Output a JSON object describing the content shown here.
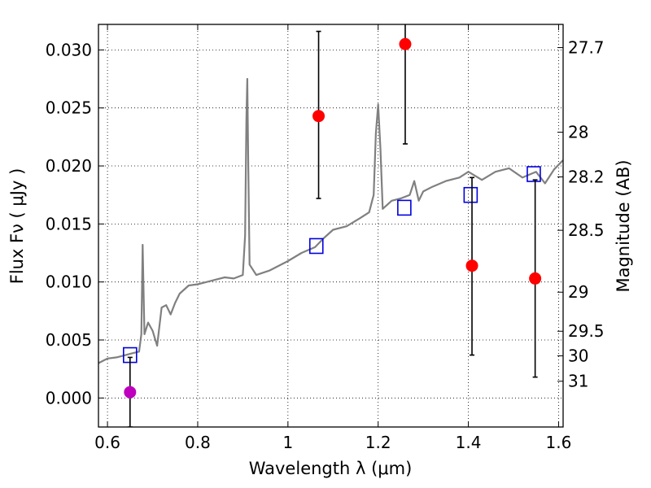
{
  "chart_data": {
    "type": "scatter",
    "xlabel": "Wavelength  λ (μm)",
    "ylabel_left": "Flux  Fν ( μJy )",
    "ylabel_right": "Magnitude (AB)",
    "xlim": [
      0.58,
      1.61
    ],
    "ylim": [
      -0.0025,
      0.0322
    ],
    "grid": true,
    "x_ticks": [
      {
        "value": 0.6,
        "label": "0.6"
      },
      {
        "value": 0.8,
        "label": "0.8"
      },
      {
        "value": 1.0,
        "label": "1"
      },
      {
        "value": 1.2,
        "label": "1.2"
      },
      {
        "value": 1.4,
        "label": "1.4"
      },
      {
        "value": 1.6,
        "label": "1.6"
      }
    ],
    "y_ticks": [
      {
        "value": 0.0,
        "label": "0.000"
      },
      {
        "value": 0.005,
        "label": "0.005"
      },
      {
        "value": 0.01,
        "label": "0.010"
      },
      {
        "value": 0.015,
        "label": "0.015"
      },
      {
        "value": 0.02,
        "label": "0.020"
      },
      {
        "value": 0.025,
        "label": "0.025"
      },
      {
        "value": 0.03,
        "label": "0.030"
      }
    ],
    "y_right_ticks": [
      {
        "value": 27.7,
        "label": "27.7"
      },
      {
        "value": 28.0,
        "label": "28"
      },
      {
        "value": 28.2,
        "label": "28.2"
      },
      {
        "value": 28.5,
        "label": "28.5"
      },
      {
        "value": 29.0,
        "label": "29"
      },
      {
        "value": 29.5,
        "label": "29.5"
      },
      {
        "value": 30.0,
        "label": "30"
      },
      {
        "value": 31.0,
        "label": "31"
      }
    ],
    "series": [
      {
        "kind": "line",
        "color": "#808080",
        "x": [
          0.58,
          0.6,
          0.62,
          0.64,
          0.65,
          0.66,
          0.67,
          0.675,
          0.678,
          0.682,
          0.69,
          0.7,
          0.71,
          0.72,
          0.73,
          0.74,
          0.75,
          0.76,
          0.78,
          0.8,
          0.82,
          0.84,
          0.86,
          0.88,
          0.9,
          0.905,
          0.908,
          0.91,
          0.912,
          0.915,
          0.93,
          0.96,
          1.0,
          1.03,
          1.06,
          1.08,
          1.1,
          1.13,
          1.16,
          1.18,
          1.19,
          1.195,
          1.2,
          1.205,
          1.21,
          1.23,
          1.25,
          1.27,
          1.28,
          1.29,
          1.3,
          1.32,
          1.35,
          1.38,
          1.4,
          1.43,
          1.46,
          1.49,
          1.52,
          1.55,
          1.57,
          1.59,
          1.61
        ],
        "y": [
          0.003,
          0.0034,
          0.0035,
          0.0037,
          0.0038,
          0.0039,
          0.004,
          0.0055,
          0.0132,
          0.0055,
          0.0065,
          0.0058,
          0.0045,
          0.0078,
          0.008,
          0.0072,
          0.0082,
          0.009,
          0.0097,
          0.0098,
          0.01,
          0.0102,
          0.0104,
          0.0103,
          0.0106,
          0.014,
          0.024,
          0.0275,
          0.02,
          0.0115,
          0.0106,
          0.011,
          0.0118,
          0.0125,
          0.013,
          0.0138,
          0.0145,
          0.0148,
          0.0155,
          0.016,
          0.0175,
          0.0228,
          0.0253,
          0.0215,
          0.0163,
          0.017,
          0.0172,
          0.0175,
          0.0187,
          0.017,
          0.0178,
          0.0182,
          0.0187,
          0.019,
          0.0195,
          0.0188,
          0.0195,
          0.0198,
          0.019,
          0.0195,
          0.0185,
          0.0197,
          0.0205
        ]
      },
      {
        "kind": "points",
        "marker": "open-square",
        "color": "#0000dd",
        "x": [
          0.65,
          1.063,
          1.258,
          1.405,
          1.545
        ],
        "y": [
          0.0037,
          0.0131,
          0.0164,
          0.0175,
          0.0193
        ]
      },
      {
        "kind": "points-with-errors",
        "marker": "filled-circle",
        "color": "#ff0000",
        "x": [
          1.068,
          1.26,
          1.408,
          1.548
        ],
        "y": [
          0.0243,
          0.0305,
          0.0114,
          0.0103
        ],
        "yerr_low": [
          0.0172,
          0.0219,
          0.0037,
          0.0018
        ],
        "yerr_high": [
          0.0316,
          0.033,
          0.019,
          0.0188
        ]
      },
      {
        "kind": "points-with-errors",
        "marker": "filled-circle",
        "color": "#bf00bf",
        "x": [
          0.65
        ],
        "y": [
          0.0005
        ],
        "yerr_low": [
          -0.0025
        ],
        "yerr_high": [
          0.0035
        ]
      }
    ]
  }
}
